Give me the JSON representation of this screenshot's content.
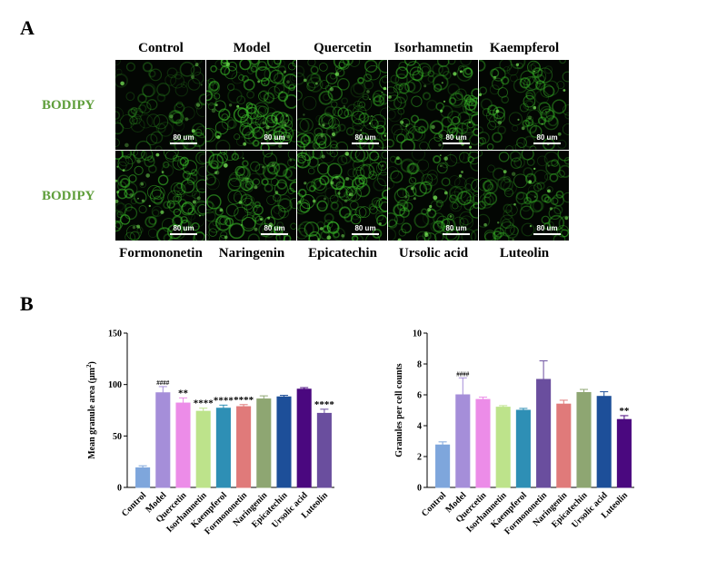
{
  "panel_a": {
    "letter": "A",
    "row_labels": [
      "BODIPY",
      "BODIPY"
    ],
    "top_labels": [
      "Control",
      "Model",
      "Quercetin",
      "Isorhamnetin",
      "Kaempferol"
    ],
    "bottom_labels": [
      "Formononetin",
      "Naringenin",
      "Epicatechin",
      "Ursolic acid",
      "Luteolin"
    ],
    "scale_bar": "80 um",
    "stain_color": "#3bbf2a",
    "staining_intensity": [
      0.35,
      0.9,
      0.75,
      0.7,
      0.6,
      0.8,
      0.75,
      0.85,
      0.7,
      0.55
    ]
  },
  "panel_b": {
    "letter": "B"
  },
  "chart_data": [
    {
      "type": "bar",
      "title": "",
      "xlabel": "",
      "ylabel_main": "Mean granule area (μm",
      "ylabel_sup": "2",
      "ylabel_end": ")",
      "ylim": [
        0,
        150
      ],
      "yticks": [
        0,
        50,
        100,
        150
      ],
      "categories": [
        "Control",
        "Model",
        "Quercetin",
        "Isorhamnetin",
        "Kaempferol",
        "Formononetin",
        "Naringenin",
        "Epicatechin",
        "Ursolic acid",
        "Luteolin"
      ],
      "values": [
        19,
        92,
        82,
        74,
        77,
        78.5,
        86,
        88,
        95.5,
        72
      ],
      "errors": [
        2,
        6,
        5,
        3,
        3,
        2,
        3,
        1.5,
        1.5,
        4
      ],
      "significance": [
        "",
        "####",
        "**",
        "****",
        "****",
        "****",
        "",
        "",
        "",
        "****"
      ],
      "colors": [
        "#7ea6dc",
        "#a58ed9",
        "#ec8ce8",
        "#bde38b",
        "#2e8fb5",
        "#e07a7a",
        "#8ea672",
        "#1d4f99",
        "#4a087f",
        "#6a4e9e"
      ]
    },
    {
      "type": "bar",
      "title": "",
      "xlabel": "",
      "ylabel": "Granules per cell counts",
      "ylim": [
        0,
        10
      ],
      "yticks": [
        0,
        2,
        4,
        6,
        8,
        10
      ],
      "categories": [
        "Control",
        "Model",
        "Quercetin",
        "Isorhamnetin",
        "Kaempferol",
        "Formononetin",
        "Naringenin",
        "Epicatechin",
        "Ursolic acid",
        "Luteolin"
      ],
      "values": [
        2.75,
        6.0,
        5.7,
        5.2,
        5.0,
        7.0,
        5.4,
        6.15,
        5.9,
        4.4
      ],
      "errors": [
        0.2,
        1.1,
        0.15,
        0.1,
        0.12,
        1.2,
        0.25,
        0.2,
        0.3,
        0.25
      ],
      "significance": [
        "",
        "####",
        "",
        "",
        "",
        "",
        "",
        "",
        "",
        "**"
      ],
      "colors": [
        "#7ea6dc",
        "#a58ed9",
        "#ec8ce8",
        "#bde38b",
        "#2e8fb5",
        "#6a4e9e",
        "#e07a7a",
        "#8ea672",
        "#1d4f99",
        "#4a087f"
      ]
    }
  ]
}
